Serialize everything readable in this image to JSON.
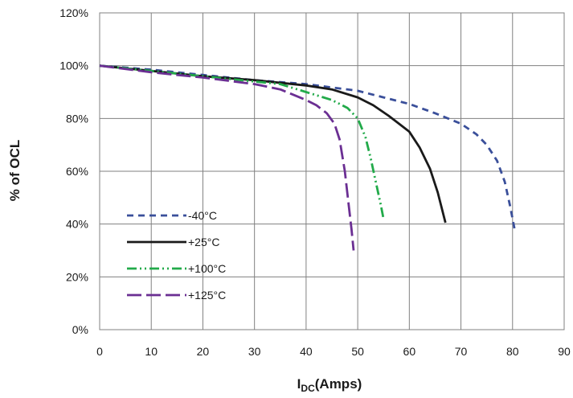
{
  "chart_data": {
    "type": "line",
    "title": "",
    "xlabel_main": "I",
    "xlabel_sub": "DC",
    "xlabel_rest": "(Amps)",
    "ylabel": "% of OCL",
    "xlim": [
      0,
      90
    ],
    "ylim": [
      0,
      120
    ],
    "x_ticks": [
      0,
      10,
      20,
      30,
      40,
      50,
      60,
      70,
      80,
      90
    ],
    "y_ticks": [
      0,
      20,
      40,
      60,
      80,
      100,
      120
    ],
    "x_tick_labels": [
      "0",
      "10",
      "20",
      "30",
      "40",
      "50",
      "60",
      "70",
      "80",
      "90"
    ],
    "y_tick_labels": [
      "0%",
      "20%",
      "40%",
      "60%",
      "80%",
      "100%",
      "120%"
    ],
    "grid": true,
    "legend_position": "lower-left",
    "series": [
      {
        "name": "-40°C",
        "color": "#3a4f9a",
        "dash": "8,6",
        "points": [
          [
            0,
            100
          ],
          [
            10,
            98.5
          ],
          [
            20,
            96.5
          ],
          [
            30,
            94.5
          ],
          [
            40,
            93
          ],
          [
            50,
            90.5
          ],
          [
            55,
            88
          ],
          [
            60,
            85.5
          ],
          [
            65,
            82
          ],
          [
            70,
            78
          ],
          [
            73,
            74
          ],
          [
            75,
            70
          ],
          [
            77,
            64
          ],
          [
            78.5,
            56
          ],
          [
            79.5,
            47
          ],
          [
            80.5,
            37
          ]
        ]
      },
      {
        "name": "+25°C",
        "color": "#1a1a1a",
        "dash": "",
        "points": [
          [
            0,
            100
          ],
          [
            10,
            98
          ],
          [
            20,
            96
          ],
          [
            30,
            94.5
          ],
          [
            40,
            92.5
          ],
          [
            45,
            91
          ],
          [
            50,
            88
          ],
          [
            53,
            85
          ],
          [
            56,
            81
          ],
          [
            58,
            78
          ],
          [
            60,
            75
          ],
          [
            62,
            69
          ],
          [
            64,
            61
          ],
          [
            65.5,
            52
          ],
          [
            67,
            40.5
          ]
        ]
      },
      {
        "name": "+100°C",
        "color": "#22aa4a",
        "dash": "12,4,2,4,2,4",
        "points": [
          [
            0,
            100
          ],
          [
            10,
            98
          ],
          [
            20,
            96
          ],
          [
            30,
            94
          ],
          [
            35,
            93
          ],
          [
            40,
            90
          ],
          [
            45,
            87
          ],
          [
            48,
            84
          ],
          [
            50,
            80
          ],
          [
            51.5,
            73
          ],
          [
            52.5,
            65
          ],
          [
            53.5,
            56
          ],
          [
            54.5,
            47
          ],
          [
            55,
            42
          ]
        ]
      },
      {
        "name": "+125°C",
        "color": "#6b2f93",
        "dash": "18,6",
        "points": [
          [
            0,
            100
          ],
          [
            10,
            97.5
          ],
          [
            20,
            95.5
          ],
          [
            30,
            93
          ],
          [
            35,
            91
          ],
          [
            40,
            87
          ],
          [
            42,
            85
          ],
          [
            44,
            82
          ],
          [
            45.5,
            78
          ],
          [
            46.5,
            72
          ],
          [
            47.5,
            60
          ],
          [
            48.2,
            48
          ],
          [
            48.8,
            38
          ],
          [
            49.2,
            30
          ]
        ]
      }
    ]
  }
}
